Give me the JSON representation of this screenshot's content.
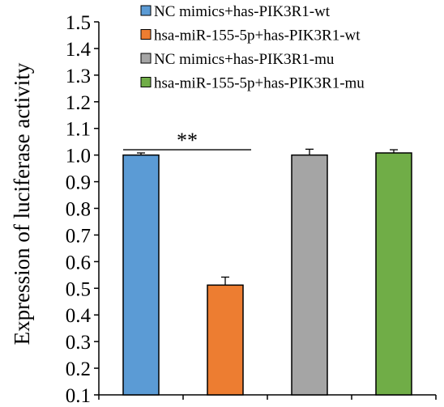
{
  "chart_data": {
    "type": "bar",
    "ylabel": "Expression of luciferase activity",
    "ylim": [
      0.1,
      1.5
    ],
    "ytick_step": 0.1,
    "ytick_labels": [
      "0.1",
      "0.2",
      "0.3",
      "0.4",
      "0.5",
      "0.6",
      "0.7",
      "0.8",
      "0.9",
      "1.0",
      "1.1",
      "1.2",
      "1.3",
      "1.4",
      "1.5"
    ],
    "series": [
      {
        "name": "NC mimics+has-PIK3R1-wt",
        "value": 1.0,
        "error": 0.008,
        "color": "#5B9BD5"
      },
      {
        "name": "hsa-miR-155-5p+has-PIK3R1-wt",
        "value": 0.512,
        "error": 0.03,
        "color": "#ED7D31"
      },
      {
        "name": "NC mimics+has-PIK3R1-mu",
        "value": 1.0,
        "error": 0.022,
        "color": "#A5A5A5"
      },
      {
        "name": "hsa-miR-155-5p+has-PIK3R1-mu",
        "value": 1.008,
        "error": 0.012,
        "color": "#70AD47"
      }
    ],
    "annotations": [
      {
        "text": "**",
        "level": 1.02,
        "from_bar": 0,
        "to_bar": 1
      }
    ],
    "grid": false,
    "legend_position": "top-right"
  }
}
